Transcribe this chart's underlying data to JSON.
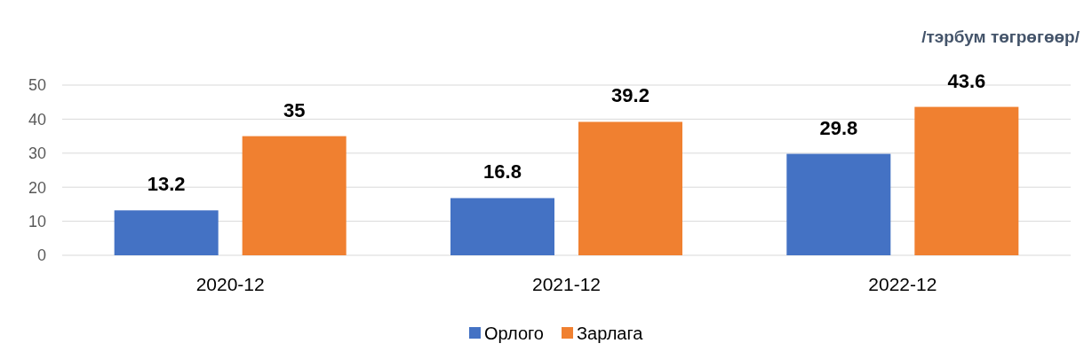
{
  "chart_data": {
    "type": "bar",
    "ylabel": "/тэрбум төгрөгөөр/",
    "categories": [
      "2020-12",
      "2021-12",
      "2022-12"
    ],
    "series": [
      {
        "name": "Орлого",
        "color": "#4472c4",
        "values": [
          13.2,
          16.8,
          29.8
        ]
      },
      {
        "name": "Зарлага",
        "color": "#f08030",
        "values": [
          35,
          39.2,
          43.6
        ]
      }
    ],
    "ylim": [
      0,
      50
    ],
    "yticks": [
      0,
      10,
      20,
      30,
      40,
      50
    ],
    "grid": "y",
    "legend": "bottom",
    "data_labels": true
  }
}
